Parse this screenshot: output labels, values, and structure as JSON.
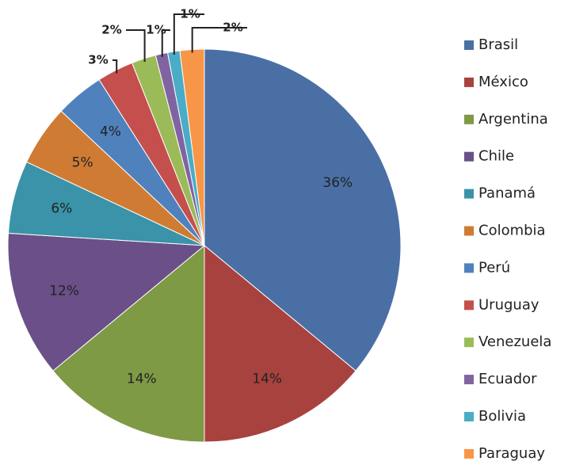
{
  "chart_data": {
    "type": "pie",
    "categories": [
      "Brasil",
      "México",
      "Argentina",
      "Chile",
      "Panamá",
      "Colombia",
      "Perú",
      "Uruguay",
      "Venezuela",
      "Ecuador",
      "Bolivia",
      "Paraguay"
    ],
    "values": [
      36,
      14,
      14,
      12,
      6,
      5,
      4,
      3,
      2,
      1,
      1,
      2
    ],
    "value_labels": [
      "36%",
      "14%",
      "14%",
      "12%",
      "6%",
      "5%",
      "4%",
      "3%",
      "2%",
      "1%",
      "1%",
      "2%"
    ],
    "colors": [
      "#4a6fa5",
      "#a8423f",
      "#7e9a45",
      "#6a4f88",
      "#3a93a8",
      "#d07b34",
      "#4f81bd",
      "#c54f4c",
      "#9bbb59",
      "#8064a2",
      "#4bacc6",
      "#f79646"
    ],
    "legend": "right"
  }
}
